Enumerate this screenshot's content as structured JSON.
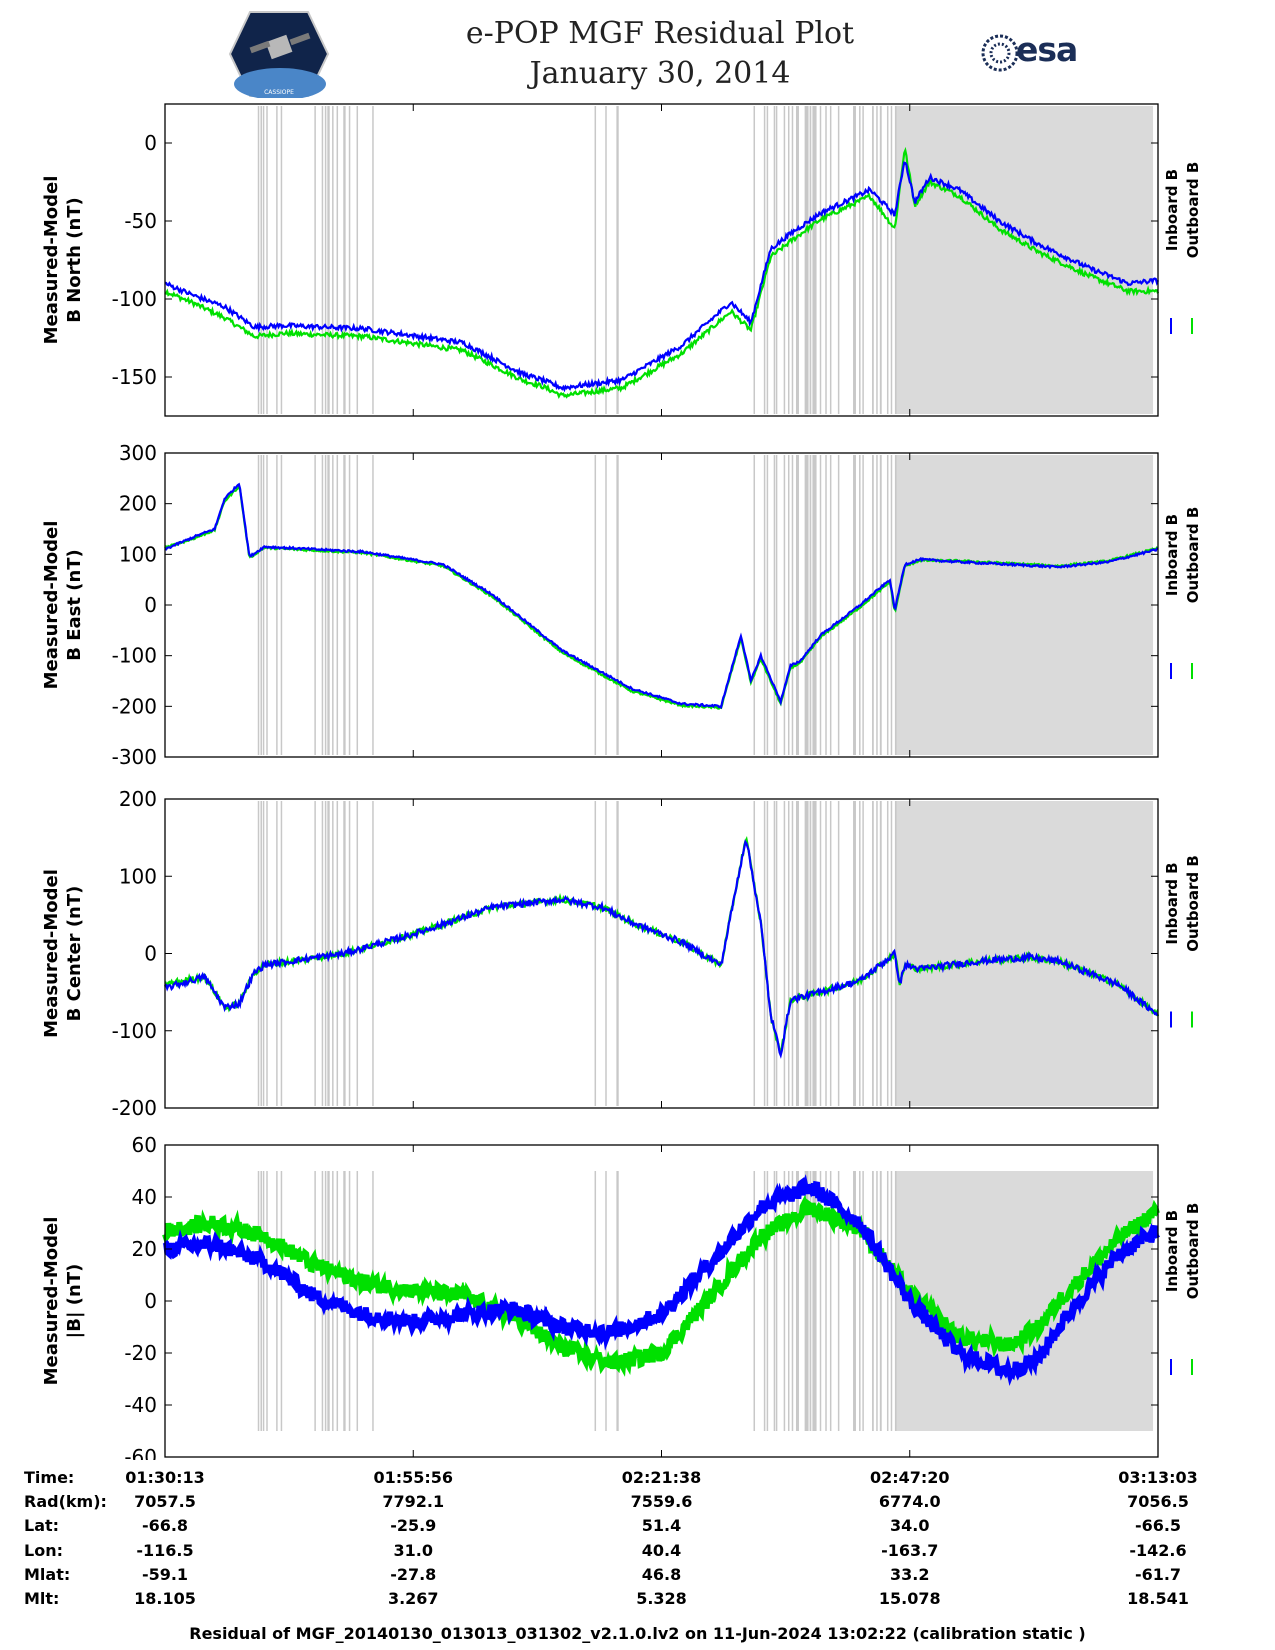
{
  "header": {
    "title_line1": "e-POP MGF Residual Plot",
    "title_line2": "January 30, 2014",
    "logo_left": "cassiope-mission-logo",
    "logo_right_text": "esa"
  },
  "chart_data": [
    {
      "type": "line",
      "ylabel_line1": "Measured-Model",
      "ylabel_line2": "B North (nT)",
      "ylim": [
        -175,
        25
      ],
      "yticks": [
        0,
        -50,
        -100,
        -150
      ],
      "ytick_labels": [
        "0",
        "-50",
        "-100",
        "-150"
      ],
      "legend": [
        "Inboard B",
        "Outboard B"
      ],
      "x": [
        0,
        0.03,
        0.06,
        0.09,
        0.12,
        0.2,
        0.3,
        0.36,
        0.38,
        0.4,
        0.46,
        0.52,
        0.57,
        0.59,
        0.61,
        0.63,
        0.66,
        0.71,
        0.735,
        0.745,
        0.755,
        0.77,
        0.8,
        0.84,
        0.88,
        0.93,
        0.97,
        1.0
      ],
      "series": [
        {
          "name": "Inboard B",
          "color": "#0000ff",
          "values": [
            -90,
            -98,
            -105,
            -118,
            -117,
            -119,
            -128,
            -148,
            -152,
            -157,
            -152,
            -130,
            -102,
            -115,
            -68,
            -58,
            -45,
            -30,
            -46,
            -10,
            -38,
            -22,
            -30,
            -50,
            -65,
            -80,
            -90,
            -88
          ]
        },
        {
          "name": "Outboard B",
          "color": "#00e000",
          "values": [
            -95,
            -103,
            -112,
            -124,
            -122,
            -124,
            -133,
            -152,
            -156,
            -162,
            -157,
            -135,
            -108,
            -120,
            -73,
            -63,
            -49,
            -34,
            -55,
            -3,
            -40,
            -25,
            -34,
            -55,
            -70,
            -85,
            -95,
            -95
          ]
        }
      ]
    },
    {
      "type": "line",
      "ylabel_line1": "Measured-Model",
      "ylabel_line2": "B East (nT)",
      "ylim": [
        -300,
        300
      ],
      "yticks": [
        300,
        200,
        100,
        0,
        -100,
        -200,
        -300
      ],
      "ytick_labels": [
        "300",
        "200",
        "100",
        "0",
        "-100",
        "-200",
        "-300"
      ],
      "legend": [
        "Inboard B",
        "Outboard B"
      ],
      "x": [
        0,
        0.03,
        0.05,
        0.06,
        0.075,
        0.085,
        0.1,
        0.2,
        0.28,
        0.33,
        0.4,
        0.47,
        0.52,
        0.56,
        0.58,
        0.59,
        0.6,
        0.62,
        0.63,
        0.64,
        0.66,
        0.7,
        0.73,
        0.735,
        0.745,
        0.76,
        0.8,
        0.85,
        0.9,
        0.95,
        1.0
      ],
      "series": [
        {
          "name": "Inboard B",
          "color": "#0000ff",
          "values": [
            110,
            135,
            150,
            210,
            240,
            95,
            115,
            105,
            80,
            20,
            -90,
            -165,
            -195,
            -200,
            -60,
            -150,
            -100,
            -190,
            -120,
            -110,
            -60,
            0,
            50,
            -10,
            80,
            90,
            85,
            80,
            75,
            85,
            110
          ]
        },
        {
          "name": "Outboard B",
          "color": "#00e000",
          "values": [
            113,
            132,
            148,
            205,
            235,
            93,
            113,
            103,
            77,
            16,
            -94,
            -170,
            -198,
            -203,
            -66,
            -153,
            -106,
            -195,
            -124,
            -114,
            -64,
            -4,
            45,
            -15,
            76,
            88,
            87,
            82,
            77,
            87,
            112
          ]
        }
      ]
    },
    {
      "type": "line",
      "ylabel_line1": "Measured-Model",
      "ylabel_line2": "B Center (nT)",
      "ylim": [
        -200,
        200
      ],
      "yticks": [
        200,
        100,
        0,
        -100,
        -200
      ],
      "ytick_labels": [
        "200",
        "100",
        "0",
        "-100",
        "-200"
      ],
      "legend": [
        "Inboard B",
        "Outboard B"
      ],
      "x": [
        0,
        0.04,
        0.06,
        0.075,
        0.08,
        0.09,
        0.1,
        0.18,
        0.25,
        0.33,
        0.4,
        0.44,
        0.47,
        0.52,
        0.56,
        0.585,
        0.6,
        0.61,
        0.62,
        0.63,
        0.66,
        0.7,
        0.735,
        0.74,
        0.745,
        0.76,
        0.82,
        0.87,
        0.9,
        0.96,
        1.0
      ],
      "series": [
        {
          "name": "Inboard B",
          "color": "#0000ff",
          "values": [
            -45,
            -30,
            -70,
            -65,
            -50,
            -25,
            -15,
            0,
            25,
            60,
            70,
            60,
            40,
            15,
            -15,
            150,
            40,
            -80,
            -130,
            -60,
            -50,
            -35,
            0,
            -40,
            -15,
            -20,
            -10,
            -5,
            -10,
            -40,
            -80
          ]
        },
        {
          "name": "Outboard B",
          "color": "#00e000",
          "values": [
            -40,
            -30,
            -70,
            -65,
            -50,
            -25,
            -15,
            0,
            25,
            60,
            70,
            60,
            40,
            15,
            -15,
            150,
            40,
            -80,
            -130,
            -60,
            -50,
            -35,
            0,
            -40,
            -15,
            -20,
            -10,
            -5,
            -10,
            -40,
            -80
          ]
        }
      ]
    },
    {
      "type": "line",
      "ylabel_line1": "Measured-Model",
      "ylabel_line2": "|B| (nT)",
      "ylim": [
        -60,
        60
      ],
      "yticks": [
        60,
        40,
        20,
        0,
        -20,
        -40,
        -60
      ],
      "ytick_labels": [
        "60",
        "40",
        "20",
        "0",
        "-20",
        "-40",
        "-60"
      ],
      "legend": [
        "Inboard B",
        "Outboard B"
      ],
      "x": [
        0,
        0.05,
        0.1,
        0.15,
        0.2,
        0.25,
        0.3,
        0.35,
        0.4,
        0.45,
        0.5,
        0.55,
        0.6,
        0.65,
        0.7,
        0.75,
        0.8,
        0.85,
        0.88,
        0.9,
        0.93,
        0.96,
        1.0
      ],
      "series": [
        {
          "name": "Inboard B",
          "color": "#0000ff",
          "values": [
            20,
            22,
            15,
            2,
            -5,
            -8,
            -5,
            -3,
            -10,
            -12,
            -5,
            15,
            36,
            44,
            30,
            0,
            -20,
            -27,
            -22,
            -10,
            5,
            18,
            27
          ]
        },
        {
          "name": "Outboard B",
          "color": "#00e000",
          "values": [
            27,
            30,
            25,
            14,
            7,
            4,
            2,
            -6,
            -18,
            -24,
            -20,
            2,
            25,
            36,
            28,
            3,
            -14,
            -17,
            -10,
            0,
            12,
            24,
            35
          ]
        }
      ]
    }
  ],
  "x_tick_positions": [
    0,
    0.25,
    0.5,
    0.75,
    1.0
  ],
  "ephemeris": {
    "labels": [
      "Time:",
      "Rad(km):",
      "Lat:",
      "Lon:",
      "Mlat:",
      "Mlt:"
    ],
    "columns": [
      [
        "01:30:13",
        "7057.5",
        "-66.8",
        "-116.5",
        "-59.1",
        "18.105"
      ],
      [
        "01:55:56",
        "7792.1",
        "-25.9",
        "31.0",
        "-27.8",
        "3.267"
      ],
      [
        "02:21:38",
        "7559.6",
        "51.4",
        "40.4",
        "46.8",
        "5.328"
      ],
      [
        "02:47:20",
        "6774.0",
        "34.0",
        "-163.7",
        "33.2",
        "15.078"
      ],
      [
        "03:13:03",
        "7056.5",
        "-66.5",
        "-142.6",
        "-61.7",
        "18.541"
      ]
    ]
  },
  "footer": "Residual of MGF_20140130_013013_031302_v2.1.0.lv2 on 11-Jun-2024 13:02:22 (calibration static )"
}
